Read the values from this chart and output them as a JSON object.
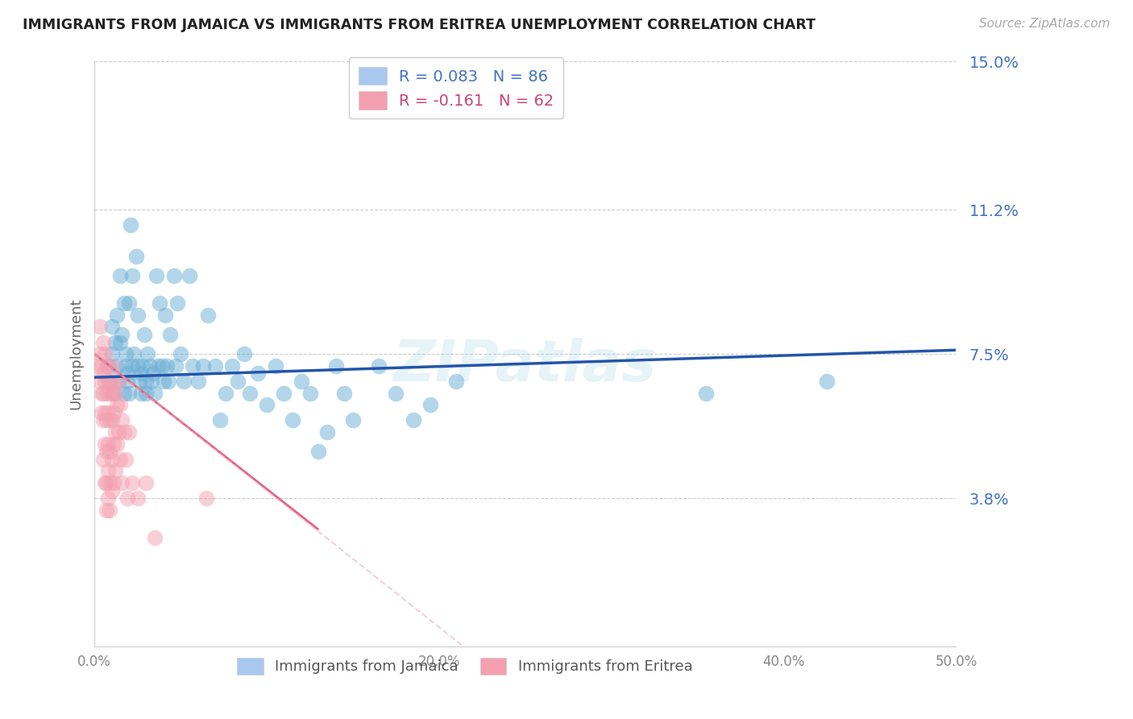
{
  "title": "IMMIGRANTS FROM JAMAICA VS IMMIGRANTS FROM ERITREA UNEMPLOYMENT CORRELATION CHART",
  "source": "Source: ZipAtlas.com",
  "ylabel": "Unemployment",
  "xlim": [
    0.0,
    0.5
  ],
  "ylim": [
    0.0,
    0.15
  ],
  "yticks": [
    0.038,
    0.075,
    0.112,
    0.15
  ],
  "ytick_labels": [
    "3.8%",
    "7.5%",
    "11.2%",
    "15.0%"
  ],
  "xticks": [
    0.0,
    0.1,
    0.2,
    0.3,
    0.4,
    0.5
  ],
  "xtick_labels": [
    "0.0%",
    "",
    "20.0%",
    "",
    "40.0%",
    "50.0%"
  ],
  "jamaica_color": "#6baed6",
  "eritrea_color": "#f4a0b0",
  "watermark": "ZIPatlas",
  "jamaica_line": [
    0.0,
    0.069,
    0.5,
    0.076
  ],
  "eritrea_line": [
    0.0,
    0.075,
    0.5,
    -0.1
  ],
  "jamaica_points": [
    [
      0.008,
      0.072
    ],
    [
      0.009,
      0.068
    ],
    [
      0.01,
      0.075
    ],
    [
      0.01,
      0.082
    ],
    [
      0.011,
      0.065
    ],
    [
      0.012,
      0.078
    ],
    [
      0.013,
      0.072
    ],
    [
      0.013,
      0.085
    ],
    [
      0.014,
      0.068
    ],
    [
      0.015,
      0.095
    ],
    [
      0.015,
      0.078
    ],
    [
      0.016,
      0.08
    ],
    [
      0.017,
      0.065
    ],
    [
      0.017,
      0.088
    ],
    [
      0.018,
      0.072
    ],
    [
      0.018,
      0.075
    ],
    [
      0.019,
      0.068
    ],
    [
      0.019,
      0.07
    ],
    [
      0.02,
      0.088
    ],
    [
      0.02,
      0.065
    ],
    [
      0.021,
      0.108
    ],
    [
      0.022,
      0.095
    ],
    [
      0.022,
      0.072
    ],
    [
      0.023,
      0.075
    ],
    [
      0.024,
      0.1
    ],
    [
      0.025,
      0.085
    ],
    [
      0.025,
      0.072
    ],
    [
      0.026,
      0.068
    ],
    [
      0.027,
      0.07
    ],
    [
      0.027,
      0.065
    ],
    [
      0.028,
      0.072
    ],
    [
      0.029,
      0.08
    ],
    [
      0.03,
      0.068
    ],
    [
      0.03,
      0.065
    ],
    [
      0.031,
      0.075
    ],
    [
      0.032,
      0.072
    ],
    [
      0.033,
      0.068
    ],
    [
      0.034,
      0.07
    ],
    [
      0.035,
      0.065
    ],
    [
      0.036,
      0.095
    ],
    [
      0.037,
      0.072
    ],
    [
      0.038,
      0.088
    ],
    [
      0.039,
      0.072
    ],
    [
      0.04,
      0.068
    ],
    [
      0.041,
      0.085
    ],
    [
      0.042,
      0.072
    ],
    [
      0.043,
      0.068
    ],
    [
      0.044,
      0.08
    ],
    [
      0.046,
      0.095
    ],
    [
      0.047,
      0.072
    ],
    [
      0.048,
      0.088
    ],
    [
      0.05,
      0.075
    ],
    [
      0.052,
      0.068
    ],
    [
      0.055,
      0.095
    ],
    [
      0.057,
      0.072
    ],
    [
      0.06,
      0.068
    ],
    [
      0.063,
      0.072
    ],
    [
      0.066,
      0.085
    ],
    [
      0.07,
      0.072
    ],
    [
      0.073,
      0.058
    ],
    [
      0.076,
      0.065
    ],
    [
      0.08,
      0.072
    ],
    [
      0.083,
      0.068
    ],
    [
      0.087,
      0.075
    ],
    [
      0.09,
      0.065
    ],
    [
      0.095,
      0.07
    ],
    [
      0.1,
      0.062
    ],
    [
      0.105,
      0.072
    ],
    [
      0.11,
      0.065
    ],
    [
      0.115,
      0.058
    ],
    [
      0.12,
      0.068
    ],
    [
      0.125,
      0.065
    ],
    [
      0.13,
      0.05
    ],
    [
      0.135,
      0.055
    ],
    [
      0.14,
      0.072
    ],
    [
      0.145,
      0.065
    ],
    [
      0.15,
      0.058
    ],
    [
      0.165,
      0.072
    ],
    [
      0.175,
      0.065
    ],
    [
      0.185,
      0.058
    ],
    [
      0.195,
      0.062
    ],
    [
      0.21,
      0.068
    ],
    [
      0.355,
      0.065
    ],
    [
      0.425,
      0.068
    ]
  ],
  "eritrea_points": [
    [
      0.002,
      0.072
    ],
    [
      0.003,
      0.068
    ],
    [
      0.003,
      0.075
    ],
    [
      0.003,
      0.082
    ],
    [
      0.004,
      0.065
    ],
    [
      0.004,
      0.072
    ],
    [
      0.004,
      0.06
    ],
    [
      0.005,
      0.078
    ],
    [
      0.005,
      0.07
    ],
    [
      0.005,
      0.065
    ],
    [
      0.005,
      0.058
    ],
    [
      0.005,
      0.048
    ],
    [
      0.006,
      0.075
    ],
    [
      0.006,
      0.068
    ],
    [
      0.006,
      0.06
    ],
    [
      0.006,
      0.052
    ],
    [
      0.006,
      0.042
    ],
    [
      0.007,
      0.072
    ],
    [
      0.007,
      0.065
    ],
    [
      0.007,
      0.058
    ],
    [
      0.007,
      0.05
    ],
    [
      0.007,
      0.042
    ],
    [
      0.007,
      0.035
    ],
    [
      0.008,
      0.068
    ],
    [
      0.008,
      0.06
    ],
    [
      0.008,
      0.052
    ],
    [
      0.008,
      0.045
    ],
    [
      0.008,
      0.038
    ],
    [
      0.009,
      0.065
    ],
    [
      0.009,
      0.058
    ],
    [
      0.009,
      0.05
    ],
    [
      0.009,
      0.042
    ],
    [
      0.009,
      0.035
    ],
    [
      0.01,
      0.072
    ],
    [
      0.01,
      0.065
    ],
    [
      0.01,
      0.058
    ],
    [
      0.01,
      0.048
    ],
    [
      0.01,
      0.04
    ],
    [
      0.011,
      0.068
    ],
    [
      0.011,
      0.06
    ],
    [
      0.011,
      0.052
    ],
    [
      0.011,
      0.042
    ],
    [
      0.012,
      0.065
    ],
    [
      0.012,
      0.055
    ],
    [
      0.012,
      0.045
    ],
    [
      0.013,
      0.062
    ],
    [
      0.013,
      0.052
    ],
    [
      0.014,
      0.068
    ],
    [
      0.014,
      0.055
    ],
    [
      0.015,
      0.062
    ],
    [
      0.015,
      0.048
    ],
    [
      0.016,
      0.058
    ],
    [
      0.016,
      0.042
    ],
    [
      0.017,
      0.055
    ],
    [
      0.018,
      0.048
    ],
    [
      0.019,
      0.038
    ],
    [
      0.02,
      0.055
    ],
    [
      0.022,
      0.042
    ],
    [
      0.025,
      0.038
    ],
    [
      0.03,
      0.042
    ],
    [
      0.035,
      0.028
    ],
    [
      0.065,
      0.038
    ]
  ]
}
